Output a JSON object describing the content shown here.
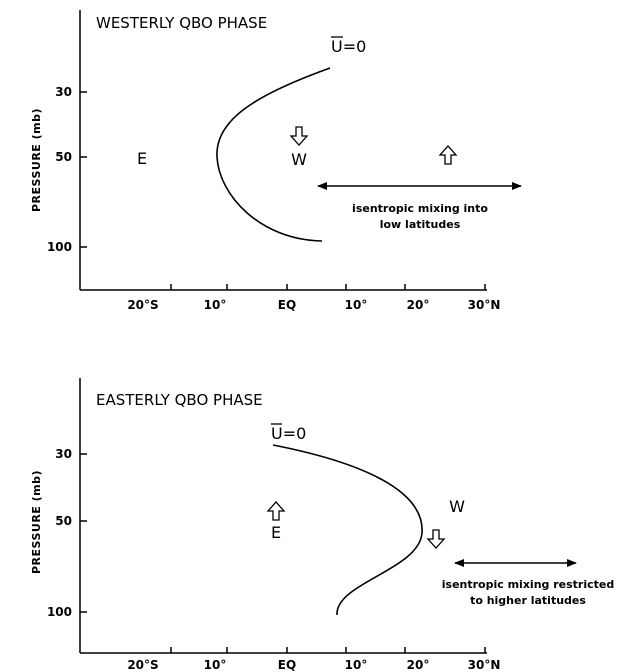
{
  "panels": [
    {
      "title": "WESTERLY QBO PHASE",
      "ylabel": "PRESSURE (mb)",
      "y_ticks": [
        "30",
        "50",
        "100"
      ],
      "x_ticks": [
        "20°S",
        "10°",
        "EQ",
        "10°",
        "20°",
        "30°N"
      ],
      "curve_label": "U=0",
      "region_left": "E",
      "region_right": "W",
      "mixing_note_line1": "isentropic mixing into",
      "mixing_note_line2": "low latitudes"
    },
    {
      "title": "EASTERLY QBO PHASE",
      "ylabel": "PRESSURE (mb)",
      "y_ticks": [
        "30",
        "50",
        "100"
      ],
      "x_ticks": [
        "20°S",
        "10°",
        "EQ",
        "10°",
        "20°",
        "30°N"
      ],
      "curve_label": "U=0",
      "region_left": "E",
      "region_right": "W",
      "mixing_note_line1": "isentropic mixing restricted",
      "mixing_note_line2": "to higher latitudes"
    }
  ]
}
